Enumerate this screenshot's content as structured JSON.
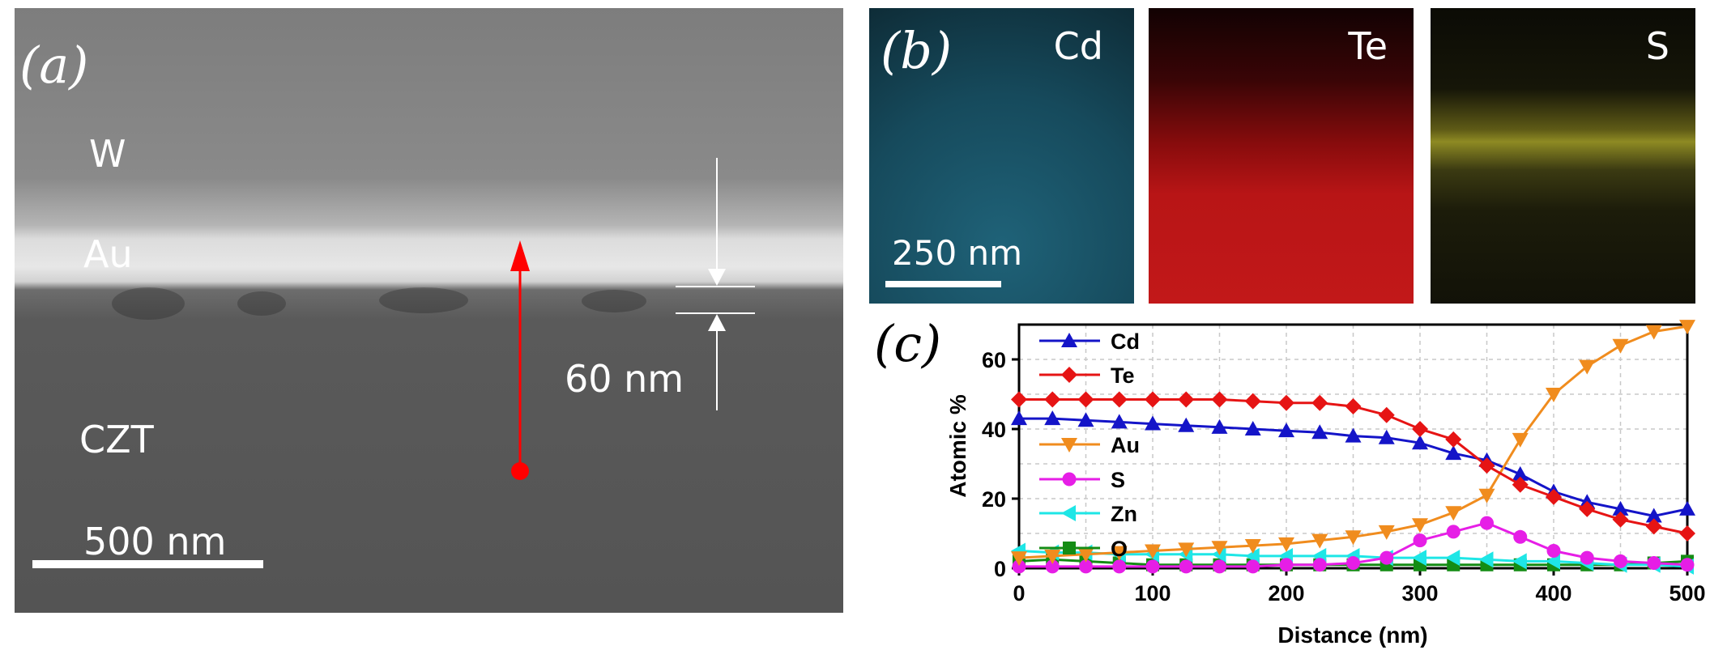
{
  "panel_a": {
    "letter": "(a)",
    "layers": {
      "w": "W",
      "au": "Au",
      "czt": "CZT"
    },
    "thickness_label": "60 nm",
    "scale_bar_label": "500 nm"
  },
  "panel_b": {
    "letter": "(b)",
    "maps": [
      {
        "label": "Cd",
        "color": "#1f6278"
      },
      {
        "label": "Te",
        "color": "#c21819"
      },
      {
        "label": "S",
        "color": "#c8c23a"
      }
    ],
    "scale_bar_label": "250 nm"
  },
  "panel_c": {
    "letter": "(c)"
  },
  "chart_data": {
    "type": "line",
    "title": "",
    "xlabel": "Distance (nm)",
    "ylabel": "Atomic %",
    "xlim": [
      0,
      500
    ],
    "ylim": [
      0,
      70
    ],
    "xticks": [
      0,
      100,
      200,
      300,
      400,
      500
    ],
    "yticks": [
      0,
      20,
      40,
      60
    ],
    "grid": true,
    "legend_position": "top-left",
    "x": [
      0,
      25,
      50,
      75,
      100,
      125,
      150,
      175,
      200,
      225,
      250,
      275,
      300,
      325,
      350,
      375,
      400,
      425,
      450,
      475,
      500
    ],
    "series": [
      {
        "name": "Cd",
        "color": "#1414c8",
        "marker": "triangle-up",
        "values": [
          43,
          43,
          42.5,
          42,
          41.5,
          41,
          40.5,
          40,
          39.5,
          39,
          38,
          37.5,
          36,
          33,
          31,
          27,
          22,
          19,
          17,
          15,
          17
        ]
      },
      {
        "name": "Te",
        "color": "#e61414",
        "marker": "diamond",
        "values": [
          48.5,
          48.5,
          48.5,
          48.5,
          48.5,
          48.5,
          48.5,
          48,
          47.5,
          47.5,
          46.5,
          44,
          40,
          37,
          29.5,
          24,
          20.5,
          17,
          14,
          12,
          10
        ]
      },
      {
        "name": "Au",
        "color": "#f08c1e",
        "marker": "triangle-down",
        "values": [
          3,
          3.5,
          4,
          4.5,
          5,
          5.5,
          6,
          6.5,
          7,
          8,
          9,
          10.5,
          12.5,
          16,
          21,
          37,
          50,
          58,
          64,
          68,
          69.5
        ]
      },
      {
        "name": "S",
        "color": "#e61ee6",
        "marker": "circle",
        "values": [
          0.5,
          0.5,
          0.5,
          0.5,
          0.5,
          0.5,
          0.5,
          0.5,
          1,
          1,
          1.5,
          3,
          8,
          10.5,
          13,
          9,
          5,
          3,
          2,
          1.5,
          1
        ]
      },
      {
        "name": "Zn",
        "color": "#1ee6e6",
        "marker": "triangle-left",
        "values": [
          5,
          4.5,
          4.5,
          4,
          4,
          4,
          4,
          3.5,
          3.5,
          3.5,
          3.5,
          3,
          3,
          3,
          2.5,
          2,
          2,
          1.5,
          1,
          1,
          0.5
        ]
      },
      {
        "name": "O",
        "color": "#148c14",
        "marker": "square",
        "values": [
          2,
          2.5,
          2,
          1.5,
          1,
          1,
          1,
          1,
          1,
          1,
          1,
          1,
          1,
          1,
          1,
          1,
          1,
          1,
          1,
          1.5,
          2
        ]
      }
    ]
  }
}
